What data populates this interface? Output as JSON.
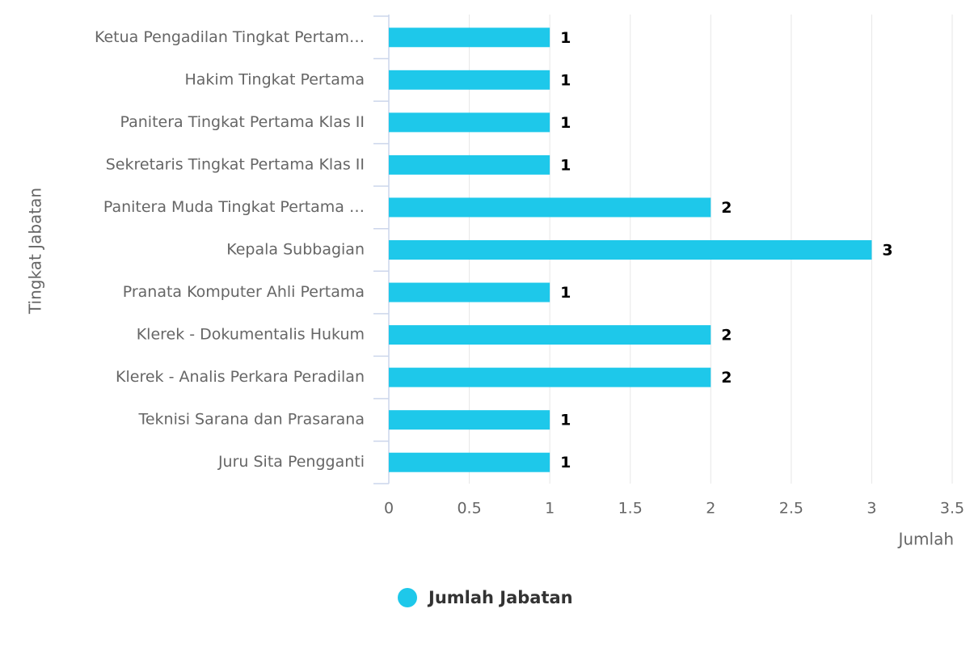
{
  "chart_data": {
    "type": "bar",
    "orientation": "horizontal",
    "categories": [
      "Ketua Pengadilan Tingkat Pertam…",
      "Hakim Tingkat Pertama",
      "Panitera Tingkat Pertama Klas II",
      "Sekretaris Tingkat Pertama Klas II",
      "Panitera Muda Tingkat Pertama …",
      "Kepala Subbagian",
      "Pranata Komputer Ahli Pertama",
      "Klerek - Dokumentalis Hukum",
      "Klerek - Analis Perkara Peradilan",
      "Teknisi Sarana dan Prasarana",
      "Juru Sita Pengganti"
    ],
    "series": [
      {
        "name": "Jumlah Jabatan",
        "color": "#1ec8ea",
        "values": [
          1,
          1,
          1,
          1,
          2,
          3,
          1,
          2,
          2,
          1,
          1
        ]
      }
    ],
    "x_label": "Jumlah",
    "y_label": "Tingkat Jabatan",
    "xlim": [
      0,
      3.5
    ],
    "xticks": [
      0,
      0.5,
      1,
      1.5,
      2,
      2.5,
      3,
      3.5
    ],
    "grid": true,
    "legend": "bottom"
  }
}
